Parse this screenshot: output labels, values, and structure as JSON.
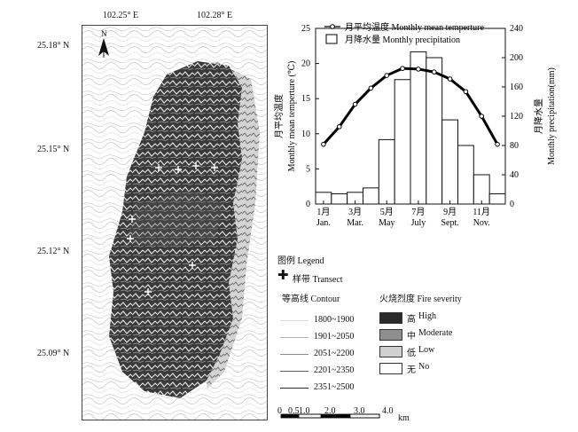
{
  "map": {
    "lon_labels": [
      "102.25° E",
      "102.28° E"
    ],
    "lat_labels": [
      "25.18° N",
      "25.15° N",
      "25.12° N",
      "25.09° N"
    ],
    "north_label": "N",
    "scale_ticks": [
      "0",
      "0.5",
      "1.0",
      "2.0",
      "3.0",
      "4.0"
    ],
    "scale_unit": "km"
  },
  "legend": {
    "title": "图例  Legend",
    "transect": "样带  Transect",
    "contour_title": "等高线   Contour",
    "contours": [
      {
        "label": "1800~1900",
        "color": "#d9d9d9"
      },
      {
        "label": "1901~2050",
        "color": "#b3b3b3"
      },
      {
        "label": "2051~2200",
        "color": "#8c8c8c"
      },
      {
        "label": "2201~2350",
        "color": "#5e5e5e"
      },
      {
        "label": "2351~2500",
        "color": "#2e2e2e"
      }
    ],
    "severity_title": "火烧烈度   Fire severity",
    "severity": [
      {
        "zh": "高",
        "en": "High",
        "color": "#2b2b2b"
      },
      {
        "zh": "中",
        "en": "Moderate",
        "color": "#8f8f8f"
      },
      {
        "zh": "低",
        "en": "Low",
        "color": "#d0d0d0"
      },
      {
        "zh": "无",
        "en": "No",
        "color": "#ffffff"
      }
    ]
  },
  "chart_data": {
    "type": "bar+line",
    "months": [
      "1",
      "2",
      "3",
      "4",
      "5",
      "6",
      "7",
      "8",
      "9",
      "10",
      "11",
      "12"
    ],
    "xtick_labels": [
      {
        "zh": "1月",
        "en": "Jan.",
        "month": 1
      },
      {
        "zh": "3月",
        "en": "Mar.",
        "month": 3
      },
      {
        "zh": "5月",
        "en": "May",
        "month": 5
      },
      {
        "zh": "7月",
        "en": "July",
        "month": 7
      },
      {
        "zh": "9月",
        "en": "Sept.",
        "month": 9
      },
      {
        "zh": "11月",
        "en": "Nov.",
        "month": 11
      }
    ],
    "series": [
      {
        "name": "月平均温度  Monthly mean temperture",
        "type": "line",
        "axis": "left",
        "values": [
          8.5,
          11,
          14.2,
          16.5,
          18.3,
          19.3,
          19.2,
          18.8,
          17.8,
          16,
          12.5,
          8.5
        ]
      },
      {
        "name": "月降水量  Monthly precipitation",
        "type": "bar",
        "axis": "right",
        "values": [
          16,
          14,
          16,
          22,
          88,
          170,
          208,
          200,
          115,
          80,
          40,
          14
        ]
      }
    ],
    "ylabel_left": "月平均温度\nMonthly mean temperture (℃)",
    "ylabel_right": "月降水量\nMonthly precipitation(mm)",
    "yticks_left": [
      0,
      5,
      10,
      15,
      20,
      25
    ],
    "yticks_right": [
      0,
      40,
      80,
      120,
      160,
      200,
      240
    ],
    "ylim_left": [
      0,
      25
    ],
    "ylim_right": [
      0,
      240
    ],
    "legend_position": "top"
  }
}
